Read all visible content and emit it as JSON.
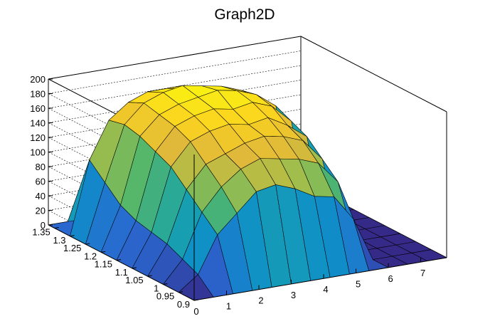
{
  "chart_data": {
    "type": "surface",
    "title": "Graph2D",
    "xlabel": "",
    "ylabel": "",
    "zlabel": "",
    "x_ticks": [
      "0",
      "1",
      "2",
      "3",
      "4",
      "5",
      "6",
      "7"
    ],
    "y_ticks": [
      "0.9",
      "0.95",
      "1",
      "1.05",
      "1.1",
      "1.15",
      "1.2",
      "1.25",
      "1.3",
      "1.35"
    ],
    "z_ticks": [
      "0",
      "20",
      "40",
      "60",
      "80",
      "100",
      "120",
      "140",
      "160",
      "180",
      "200"
    ],
    "xlim": [
      0,
      7.8
    ],
    "ylim": [
      0.9,
      1.37
    ],
    "zlim": [
      0,
      200
    ],
    "grid": true,
    "legend": "none",
    "colormap": [
      "#352a87",
      "#2a68d0",
      "#0f8fc9",
      "#1ba5a5",
      "#56b669",
      "#a1bd4b",
      "#e0b93a",
      "#fbd31f",
      "#f9fb0e"
    ],
    "surface_x": [
      0,
      0.6,
      1.2,
      1.8,
      2.4,
      3.0,
      3.6,
      4.2,
      4.8,
      5.4,
      6.0,
      6.6,
      7.2,
      7.8
    ],
    "surface_y": [
      0.9,
      0.95,
      1.0,
      1.05,
      1.1,
      1.15,
      1.2,
      1.25,
      1.3,
      1.37
    ],
    "surface_z": [
      [
        0,
        0,
        0,
        0,
        0,
        0,
        0,
        0,
        0,
        0,
        0,
        0,
        0,
        0
      ],
      [
        0,
        20,
        70,
        95,
        120,
        125,
        115,
        100,
        95,
        60,
        0,
        0,
        0,
        0
      ],
      [
        0,
        30,
        90,
        120,
        140,
        150,
        145,
        140,
        130,
        100,
        0,
        0,
        0,
        0
      ],
      [
        0,
        40,
        110,
        140,
        150,
        160,
        165,
        160,
        150,
        120,
        0,
        0,
        0,
        0
      ],
      [
        0,
        45,
        130,
        160,
        170,
        175,
        170,
        175,
        160,
        140,
        0,
        0,
        0,
        0
      ],
      [
        0,
        50,
        140,
        170,
        180,
        185,
        180,
        185,
        175,
        150,
        0,
        0,
        0,
        0
      ],
      [
        0,
        60,
        150,
        175,
        185,
        190,
        195,
        190,
        180,
        160,
        0,
        0,
        0,
        0
      ],
      [
        0,
        80,
        155,
        180,
        190,
        195,
        190,
        185,
        175,
        160,
        0,
        0,
        0,
        0
      ],
      [
        0,
        100,
        150,
        170,
        180,
        180,
        175,
        170,
        165,
        150,
        0,
        0,
        0,
        0
      ],
      [
        0,
        0,
        0,
        0,
        0,
        0,
        0,
        0,
        0,
        0,
        0,
        0,
        0,
        0
      ]
    ]
  }
}
